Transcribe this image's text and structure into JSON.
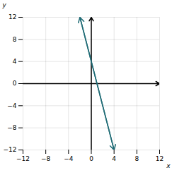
{
  "chart_data": {
    "type": "line",
    "x": [
      -2,
      4
    ],
    "values": [
      12,
      -12
    ],
    "color": "#1f6b75",
    "marker": "arrow",
    "xlabel": "x",
    "ylabel": "y",
    "xlim": [
      -12,
      12
    ],
    "ylim": [
      -12,
      12
    ],
    "xticks": [
      -12,
      -8,
      -4,
      0,
      4,
      8,
      12
    ],
    "yticks": [
      -12,
      -8,
      -4,
      0,
      4,
      8,
      12
    ],
    "grid": true
  }
}
